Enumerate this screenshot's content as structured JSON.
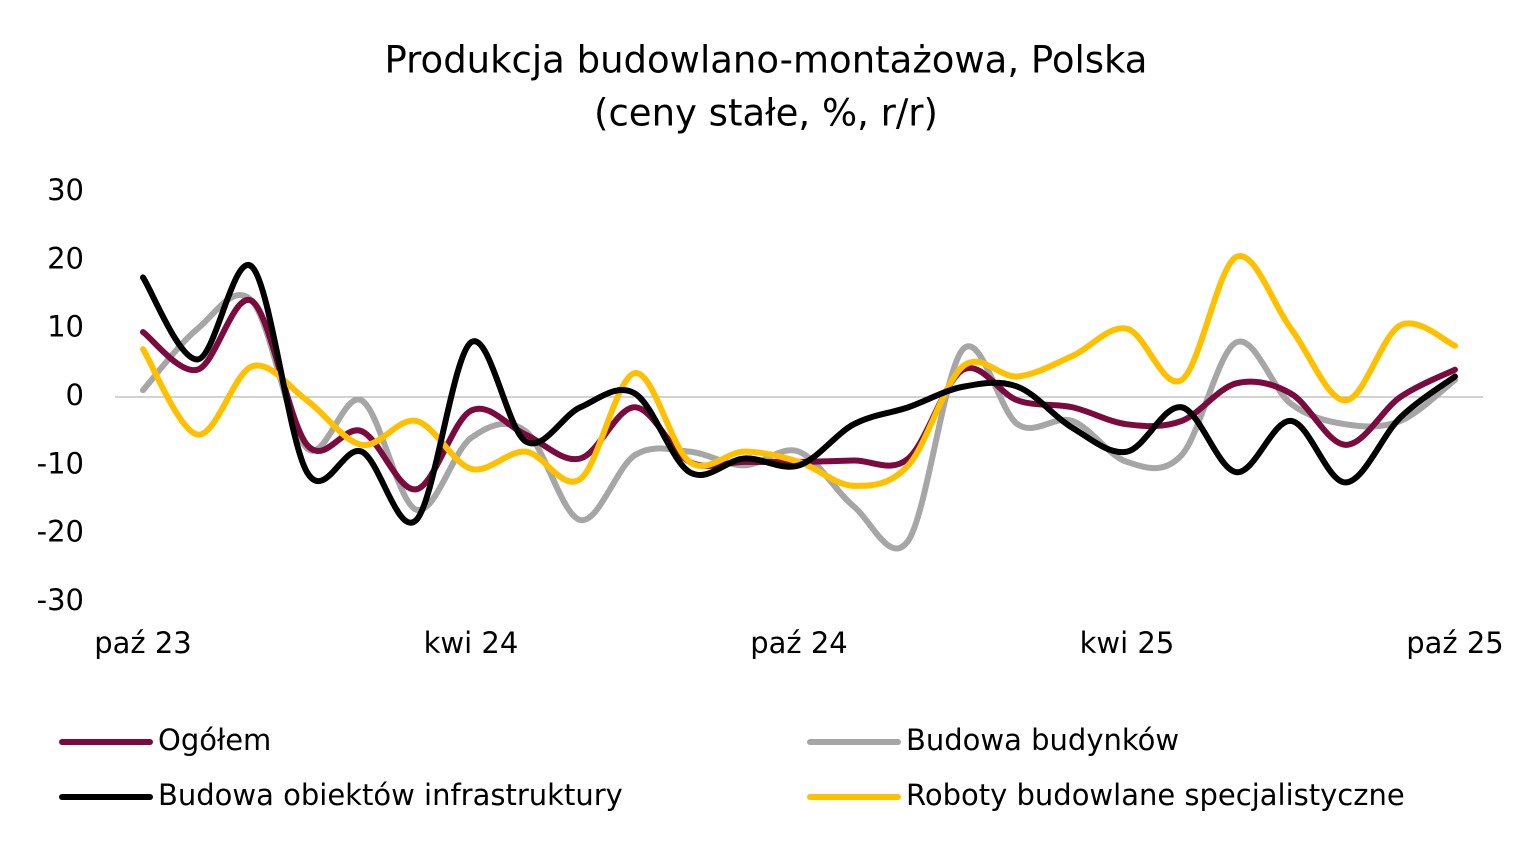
{
  "chart_data": {
    "type": "line",
    "title": "Produkcja budowlano-montażowa, Polska",
    "subtitle": "(ceny stałe, %, r/r)",
    "categories": [
      "paź 23",
      null,
      null,
      null,
      null,
      null,
      "kwi 24",
      null,
      null,
      null,
      null,
      null,
      "paź 24",
      null,
      null,
      null,
      null,
      null,
      "kwi 25",
      null,
      null,
      null,
      null,
      null,
      "paź 25"
    ],
    "ylim": [
      -30,
      30
    ],
    "yticks": [
      -30,
      -20,
      -10,
      0,
      10,
      20,
      30
    ],
    "smooth": true,
    "series": [
      {
        "name": "Ogółem",
        "color": "#7b0a3e",
        "values": [
          9.5,
          4,
          14,
          -7,
          -5,
          -13.5,
          -2,
          -5.5,
          -9,
          -1.5,
          -9.5,
          -9.5,
          -9.5,
          -9.3,
          -9,
          4,
          -0.5,
          -1.5,
          -4,
          -3.5,
          2,
          0.5,
          -7,
          0,
          4
        ]
      },
      {
        "name": "Budowa budynków",
        "color": "#a6a6a6",
        "values": [
          1,
          10,
          14,
          -7.5,
          -0.5,
          -16.5,
          -6,
          -5,
          -18,
          -8.5,
          -8,
          -10,
          -8,
          -16,
          -21,
          7,
          -4,
          -3.5,
          -9.5,
          -8.5,
          8,
          -1,
          -4,
          -3.5,
          2.5
        ]
      },
      {
        "name": "Budowa obiektów infrastruktury",
        "color": "#000000",
        "values": [
          17.5,
          5.5,
          19,
          -11,
          -8,
          -18,
          8,
          -6.5,
          -1.5,
          0.5,
          -11,
          -9,
          -10,
          -4,
          -1.5,
          1.5,
          1.5,
          -4.5,
          -8,
          -1.5,
          -11,
          -3.5,
          -12.5,
          -3,
          3
        ]
      },
      {
        "name": "Roboty budowlane specjalistyczne",
        "color": "#ffc000",
        "values": [
          7,
          -5.5,
          4.5,
          -0.5,
          -7,
          -3.5,
          -10.5,
          -8,
          -12,
          3.5,
          -9.5,
          -8,
          -9.5,
          -13,
          -10,
          4.5,
          3,
          6,
          10,
          2.5,
          20.5,
          10,
          -0.5,
          10.5,
          7.5
        ]
      }
    ]
  }
}
